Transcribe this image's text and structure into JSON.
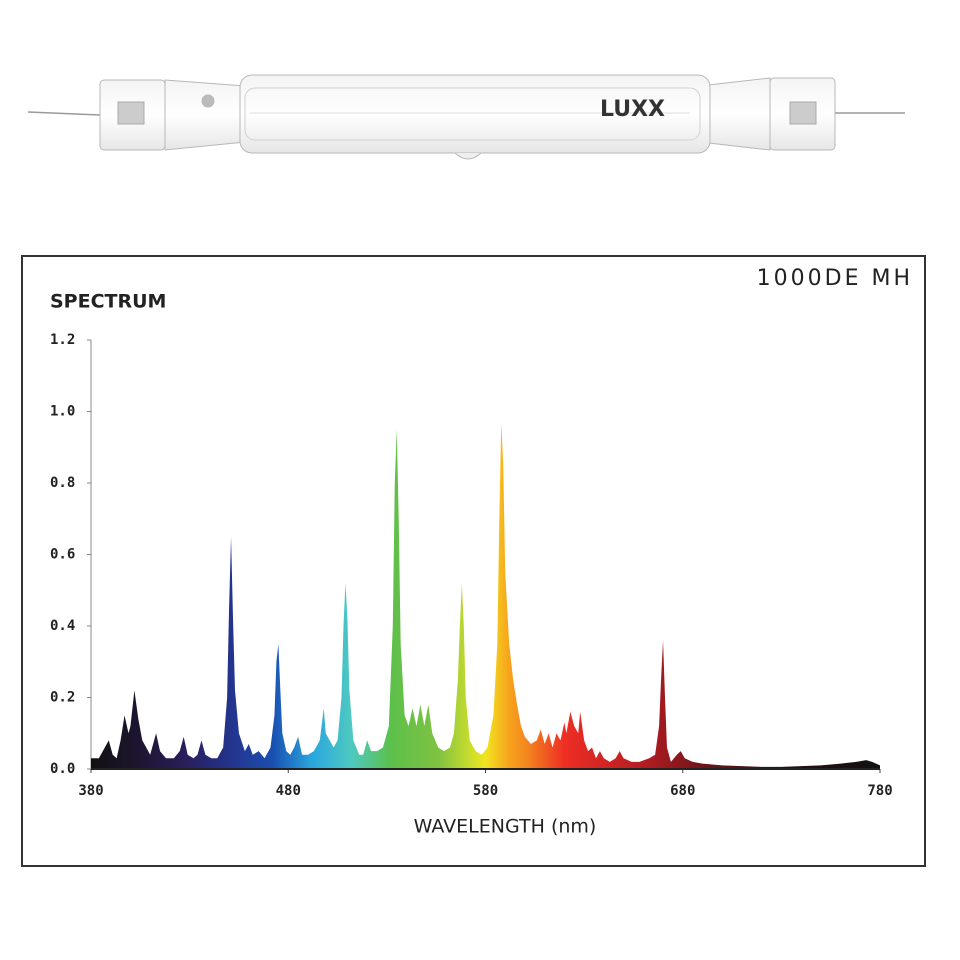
{
  "lamp": {
    "logo": "LUXX"
  },
  "chart_data": {
    "type": "area",
    "title": "1000DE MH",
    "ylabel": "SPECTRUM",
    "xlabel": "WAVELENGTH (nm)",
    "xlim": [
      380,
      780
    ],
    "xticks": [
      380,
      480,
      580,
      680,
      780
    ],
    "ylim": [
      0,
      1.2
    ],
    "yticks": [
      {
        "value": 0,
        "label": "0.0"
      },
      0.2,
      0.4,
      0.6,
      0.8,
      {
        "value": 1,
        "label": "1.0"
      },
      1.2
    ],
    "x": [
      380,
      384,
      387,
      389,
      391,
      393,
      395,
      397,
      399,
      400,
      402,
      404,
      406,
      408,
      410,
      413,
      415,
      418,
      422,
      425,
      427,
      429,
      432,
      434,
      436,
      438,
      441,
      444,
      447,
      449,
      450,
      451,
      452,
      453,
      455,
      458,
      460,
      462,
      465,
      468,
      471,
      473,
      474,
      475,
      476,
      477,
      479,
      481,
      483,
      485,
      487,
      490,
      493,
      496,
      498,
      499,
      501,
      503,
      505,
      507,
      508,
      509,
      510,
      511,
      513,
      516,
      518,
      520,
      522,
      525,
      528,
      531,
      533,
      534,
      535,
      536,
      537,
      539,
      541,
      543,
      545,
      547,
      549,
      551,
      553,
      556,
      559,
      562,
      564,
      566,
      567,
      568,
      569,
      570,
      572,
      575,
      578,
      581,
      584,
      586,
      587,
      588,
      589,
      590,
      592,
      594,
      596,
      598,
      600,
      603,
      606,
      608,
      610,
      612,
      614,
      616,
      618,
      620,
      621,
      623,
      625,
      627,
      628,
      630,
      632,
      634,
      636,
      638,
      640,
      643,
      646,
      648,
      650,
      654,
      658,
      663,
      666,
      668,
      669,
      670,
      671,
      672,
      674,
      677,
      679,
      681,
      685,
      690,
      700,
      710,
      720,
      730,
      740,
      750,
      760,
      768,
      773,
      776,
      780
    ],
    "values": [
      0.03,
      0.03,
      0.06,
      0.08,
      0.04,
      0.03,
      0.08,
      0.15,
      0.1,
      0.12,
      0.22,
      0.14,
      0.08,
      0.06,
      0.04,
      0.1,
      0.05,
      0.03,
      0.03,
      0.05,
      0.09,
      0.04,
      0.03,
      0.04,
      0.08,
      0.04,
      0.03,
      0.03,
      0.06,
      0.2,
      0.45,
      0.65,
      0.42,
      0.22,
      0.1,
      0.05,
      0.07,
      0.04,
      0.05,
      0.03,
      0.06,
      0.15,
      0.3,
      0.35,
      0.22,
      0.1,
      0.05,
      0.04,
      0.06,
      0.09,
      0.04,
      0.04,
      0.05,
      0.08,
      0.17,
      0.1,
      0.08,
      0.06,
      0.08,
      0.2,
      0.4,
      0.52,
      0.42,
      0.22,
      0.08,
      0.04,
      0.04,
      0.08,
      0.05,
      0.05,
      0.06,
      0.12,
      0.4,
      0.8,
      0.95,
      0.7,
      0.35,
      0.15,
      0.12,
      0.17,
      0.12,
      0.18,
      0.12,
      0.18,
      0.1,
      0.06,
      0.05,
      0.06,
      0.1,
      0.25,
      0.4,
      0.52,
      0.4,
      0.2,
      0.08,
      0.05,
      0.04,
      0.06,
      0.15,
      0.35,
      0.7,
      0.97,
      0.85,
      0.55,
      0.35,
      0.25,
      0.18,
      0.12,
      0.09,
      0.07,
      0.08,
      0.11,
      0.07,
      0.1,
      0.06,
      0.1,
      0.08,
      0.13,
      0.1,
      0.16,
      0.12,
      0.1,
      0.16,
      0.08,
      0.05,
      0.06,
      0.03,
      0.05,
      0.03,
      0.02,
      0.03,
      0.05,
      0.03,
      0.02,
      0.02,
      0.03,
      0.04,
      0.12,
      0.25,
      0.36,
      0.2,
      0.06,
      0.02,
      0.04,
      0.05,
      0.03,
      0.02,
      0.015,
      0.01,
      0.008,
      0.006,
      0.006,
      0.008,
      0.01,
      0.015,
      0.02,
      0.025,
      0.02,
      0.01
    ]
  }
}
